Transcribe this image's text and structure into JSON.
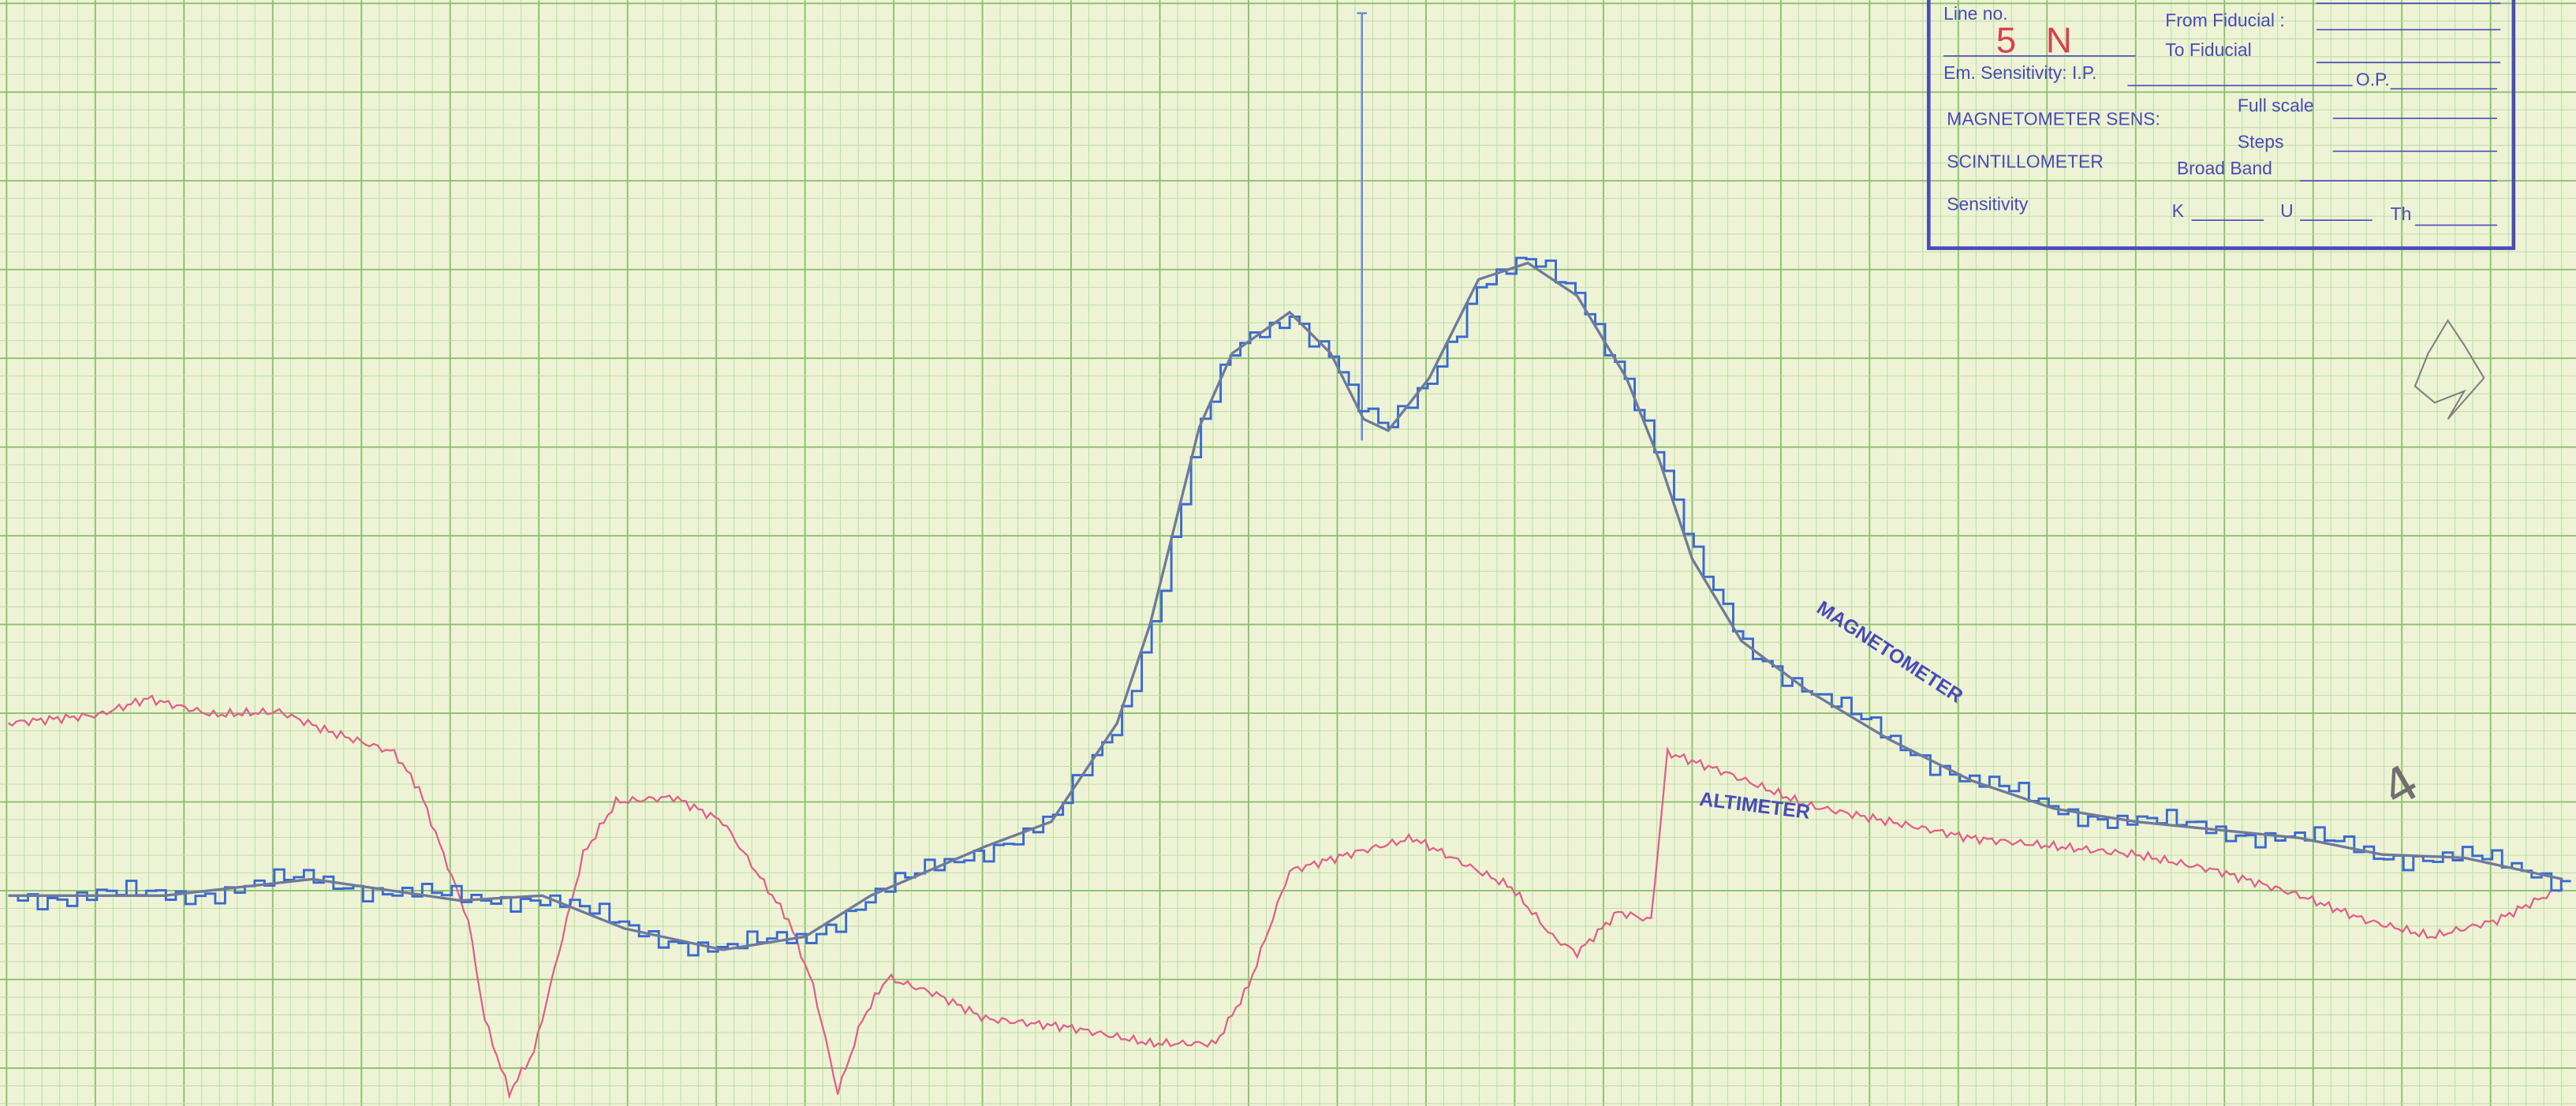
{
  "stamp": {
    "line_no": "Line no.",
    "line_value": "5 N",
    "from_fiducial": "From Fiducial :",
    "to_fiducial": "To Fiducial",
    "em_sensitivity": "Em. Sensitivity: I.P.",
    "op": "O.P.",
    "magnetometer_sens": "MAGNETOMETER SENS:",
    "full_scale": "Full scale",
    "steps": "Steps",
    "scintillometer": "SCINTILLOMETER",
    "broad_band": "Broad Band",
    "sensitivity": "Sensitivity",
    "k": "K",
    "u": "U",
    "th": "Th"
  },
  "trace_labels": {
    "magnetometer": "MAGNETOMETER",
    "altimeter": "ALTIMETER"
  },
  "annotations": {
    "mark": "4"
  }
}
